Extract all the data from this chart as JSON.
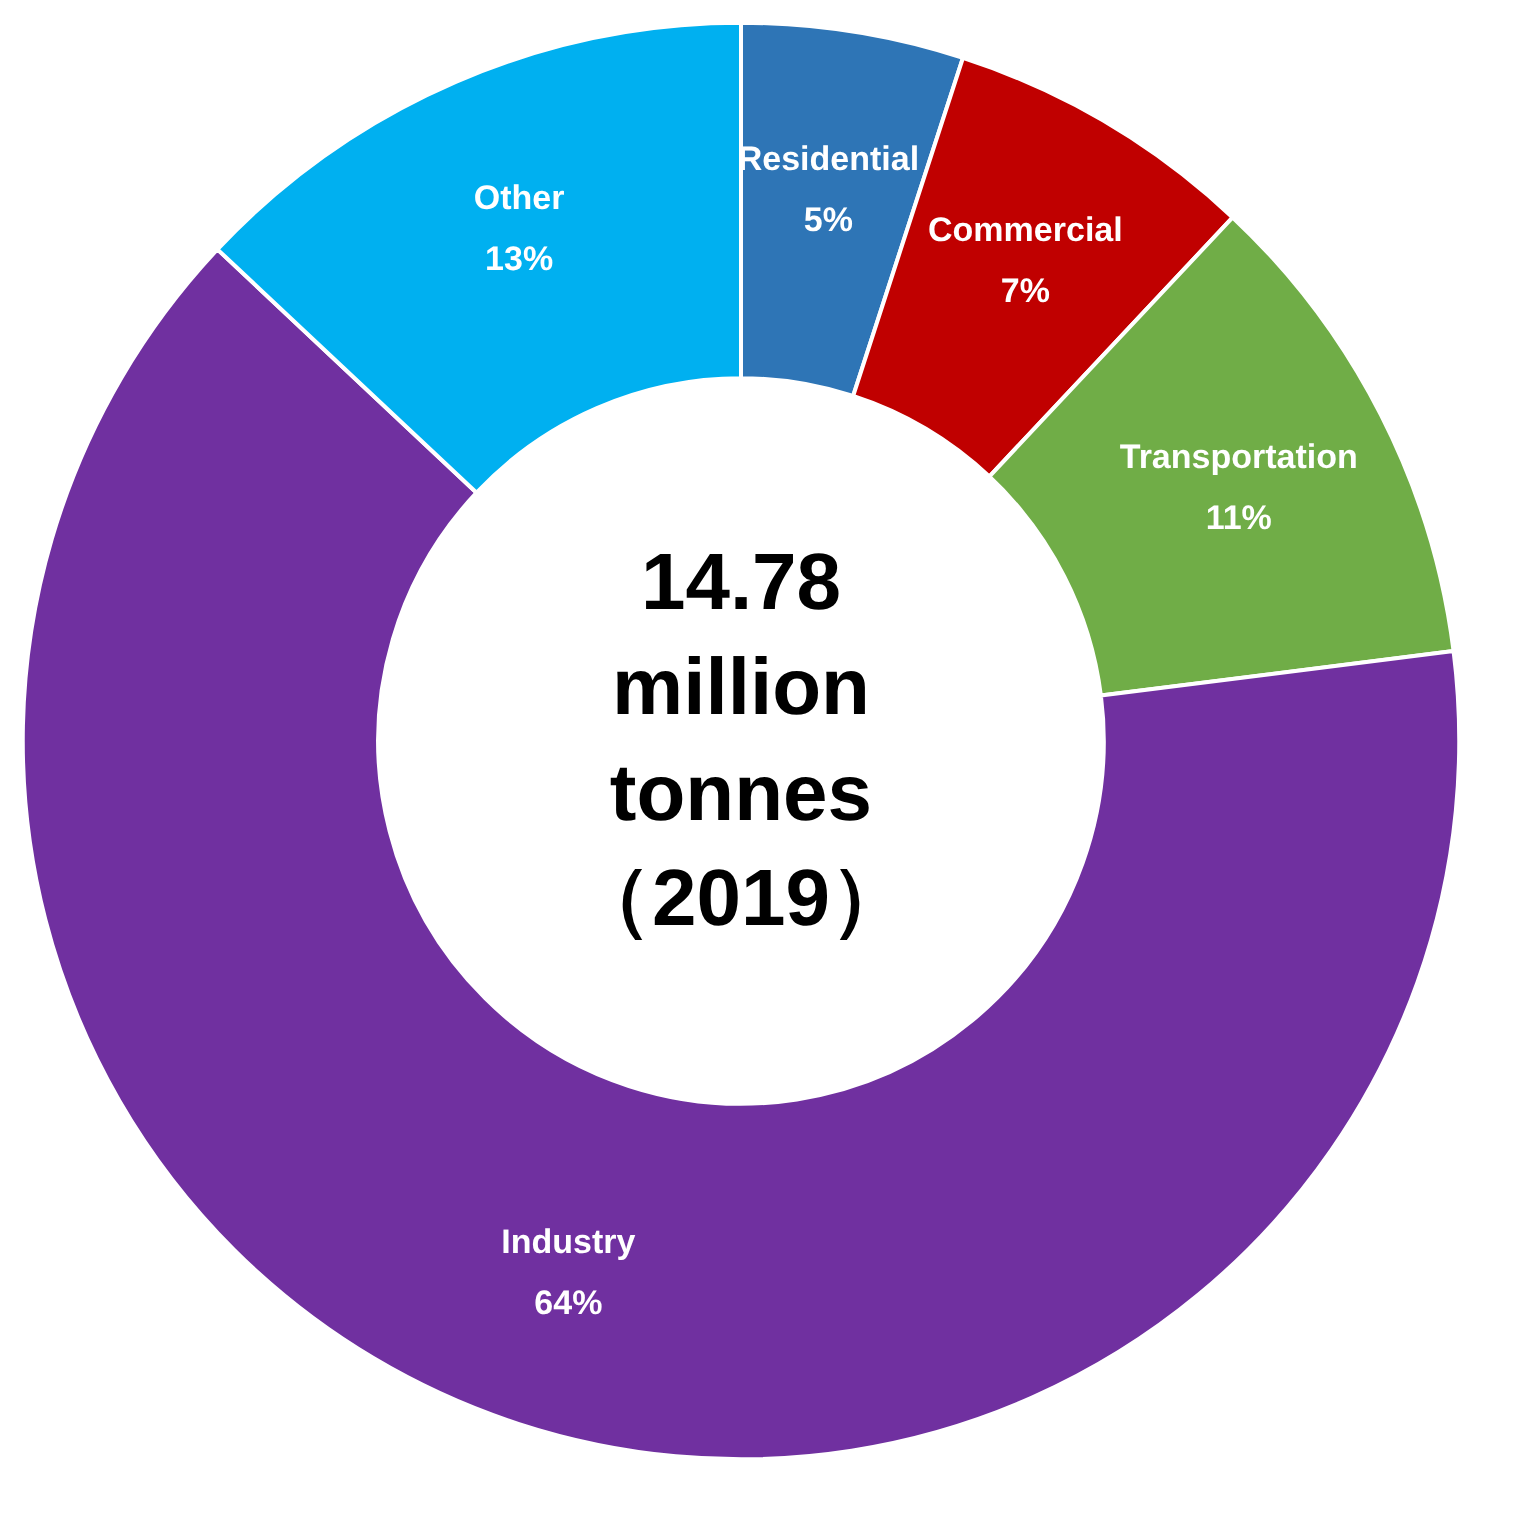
{
  "chart_data": {
    "type": "donut",
    "categories": [
      "Residential",
      "Commercial",
      "Transportation",
      "Industry",
      "Other"
    ],
    "values": [
      5,
      7,
      11,
      64,
      13
    ],
    "value_labels": [
      "5%",
      "7%",
      "11%",
      "64%",
      "13%"
    ],
    "colors": [
      "#2e75b6",
      "#c00000",
      "#70ad47",
      "#7030a0",
      "#00b0f0"
    ],
    "annotations": [
      "14.78 million tonnes （2019）"
    ]
  }
}
